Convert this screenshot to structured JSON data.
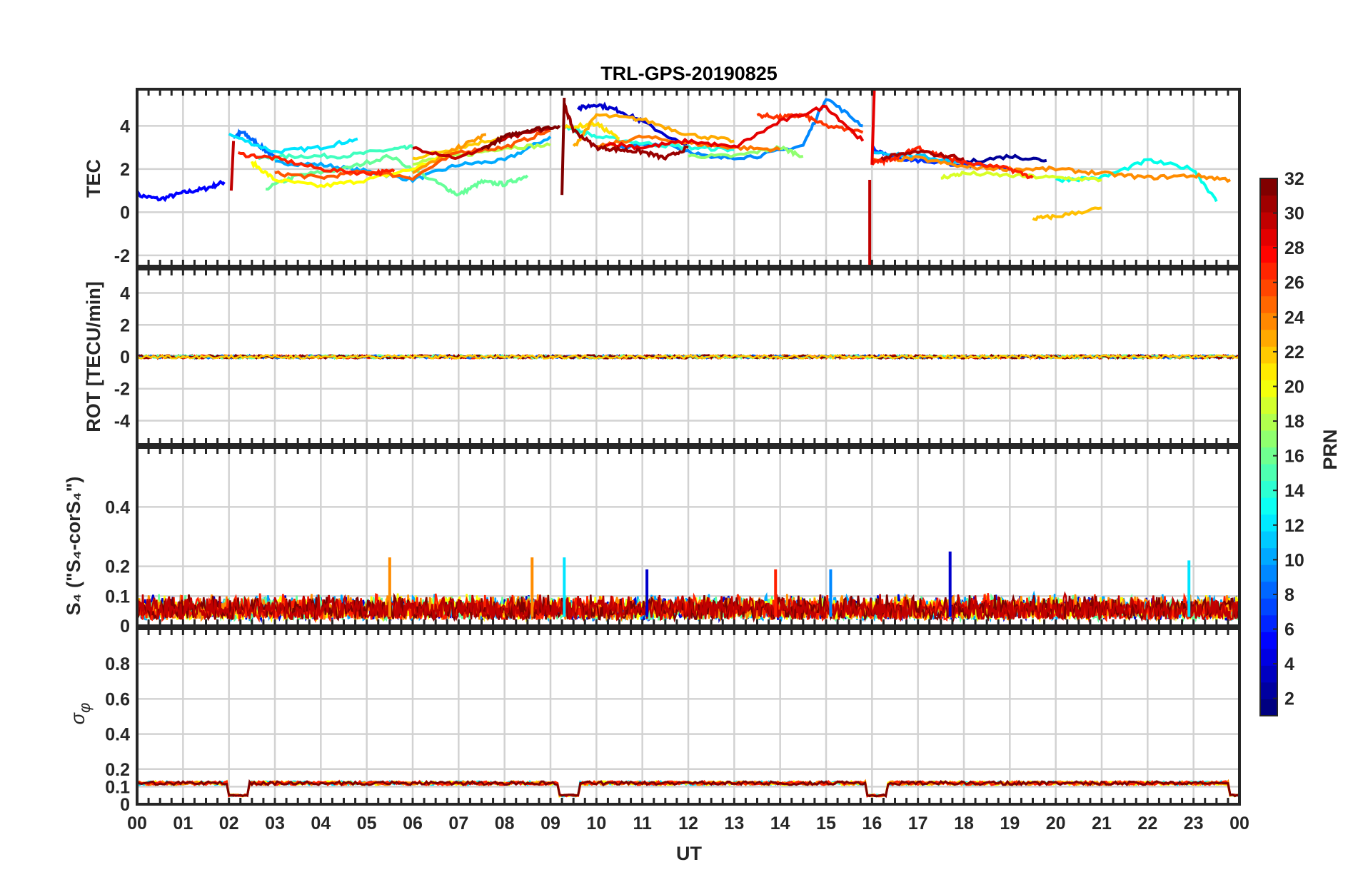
{
  "chart_data": [
    {
      "type": "line",
      "title": "TRL-GPS-20190825",
      "ylabel": "TEC",
      "ylim": [
        -2.5,
        5.7
      ],
      "yticks": [
        -2,
        0,
        2,
        4
      ],
      "xlim": [
        0,
        24
      ],
      "series": [
        {
          "prn": 4,
          "color": "#0000ff",
          "x": [
            0,
            0.5,
            1,
            1.5,
            1.9
          ],
          "y": [
            0.8,
            0.6,
            0.9,
            1.1,
            1.4
          ]
        },
        {
          "prn": 8,
          "color": "#0066ff",
          "x": [
            2.1,
            2.3,
            2.6,
            3.0
          ],
          "y": [
            3.5,
            3.7,
            3.2,
            2.5
          ]
        },
        {
          "prn": 10,
          "color": "#00aaff",
          "x": [
            3.0,
            4.0,
            5.0,
            6.0,
            7.0,
            8.0,
            9.0
          ],
          "y": [
            2.3,
            2.2,
            1.9,
            1.5,
            2.2,
            2.4,
            3.5
          ]
        },
        {
          "prn": 12,
          "color": "#00e5ff",
          "x": [
            2.0,
            3.0,
            4.0,
            4.8
          ],
          "y": [
            3.6,
            2.8,
            3.0,
            3.4
          ]
        },
        {
          "prn": 15,
          "color": "#40ffbf",
          "x": [
            2.6,
            3.5,
            4.5,
            5.5,
            6.0
          ],
          "y": [
            2.5,
            2.6,
            2.6,
            2.9,
            3.0
          ]
        },
        {
          "prn": 16,
          "color": "#66ff99",
          "x": [
            2.8,
            3.5,
            4.5,
            5.5,
            6.5,
            7.0,
            7.5,
            8.0,
            8.5
          ],
          "y": [
            1.1,
            1.7,
            2.0,
            2.6,
            1.4,
            0.8,
            1.4,
            1.3,
            1.7
          ]
        },
        {
          "prn": 18,
          "color": "#b3ff4d",
          "x": [
            6.0,
            7.0,
            8.0,
            9.0
          ],
          "y": [
            2.3,
            2.6,
            3.0,
            3.1
          ]
        },
        {
          "prn": 20,
          "color": "#ffff00",
          "x": [
            2.5,
            3.0,
            4.0,
            5.0,
            6.0,
            7.0
          ],
          "y": [
            2.3,
            1.5,
            1.2,
            1.5,
            2.0,
            2.9
          ]
        },
        {
          "prn": 22,
          "color": "#ffcc00",
          "x": [
            6.0,
            7.0,
            8.0
          ],
          "y": [
            2.5,
            3.0,
            3.5
          ]
        },
        {
          "prn": 24,
          "color": "#ff9900",
          "x": [
            6.0,
            7.0,
            7.6
          ],
          "y": [
            1.8,
            3.0,
            3.6
          ]
        },
        {
          "prn": 26,
          "color": "#ff5500",
          "x": [
            3.0,
            4.0,
            5.0,
            6.0,
            7.0,
            8.0,
            9.0
          ],
          "y": [
            1.8,
            1.6,
            1.9,
            1.6,
            2.8,
            3.0,
            3.8
          ]
        },
        {
          "prn": 28,
          "color": "#ff2000",
          "x": [
            2.2,
            3.0,
            4.0,
            5.0,
            5.6
          ],
          "y": [
            2.7,
            2.5,
            2.0,
            1.8,
            1.9
          ]
        },
        {
          "prn": 30,
          "color": "#c00000",
          "x": [
            6.0,
            7.0,
            8.0,
            9.0
          ],
          "y": [
            3.0,
            2.5,
            3.4,
            3.9
          ]
        },
        {
          "prn": 32,
          "color": "#800000",
          "x": [
            7.5,
            8.0,
            8.5,
            9.2
          ],
          "y": [
            2.9,
            3.5,
            3.8,
            4.0
          ]
        },
        {
          "prn": 3,
          "color": "#0000cc",
          "x": [
            9.6,
            10.0,
            10.5,
            11.0,
            12.0
          ],
          "y": [
            4.8,
            5.0,
            4.7,
            4.2,
            3.0
          ]
        },
        {
          "prn": 9,
          "color": "#0088ff",
          "x": [
            10.5,
            11.5,
            12.5,
            13.5,
            14.5,
            15.0,
            15.8
          ],
          "y": [
            3.0,
            3.2,
            2.5,
            2.6,
            3.1,
            5.3,
            4.0
          ]
        },
        {
          "prn": 14,
          "color": "#20ffdf",
          "x": [
            9.3,
            10.0,
            11.0,
            12.0,
            13.0
          ],
          "y": [
            4.0,
            3.5,
            3.2,
            3.0,
            2.9
          ]
        },
        {
          "prn": 17,
          "color": "#90ff70",
          "x": [
            12.0,
            13.0,
            14.0,
            14.5
          ],
          "y": [
            2.6,
            2.6,
            3.0,
            2.6
          ]
        },
        {
          "prn": 21,
          "color": "#ffe000",
          "x": [
            9.3,
            10.0,
            10.5
          ],
          "y": [
            3.9,
            4.1,
            3.4
          ]
        },
        {
          "prn": 23,
          "color": "#ffaa00",
          "x": [
            9.5,
            10.0,
            11.0,
            12.0,
            13.0
          ],
          "y": [
            3.0,
            4.5,
            4.3,
            3.6,
            3.3
          ]
        },
        {
          "prn": 25,
          "color": "#ff7700",
          "x": [
            10.0,
            11.0,
            12.0,
            13.0,
            14.0
          ],
          "y": [
            3.0,
            3.5,
            3.2,
            3.0,
            2.9
          ]
        },
        {
          "prn": 27,
          "color": "#ff3300",
          "x": [
            13.5,
            14.0,
            14.5,
            15.0,
            15.8
          ],
          "y": [
            4.5,
            4.4,
            4.5,
            4.0,
            3.7
          ]
        },
        {
          "prn": 29,
          "color": "#e60000",
          "x": [
            10.2,
            11.0,
            12.0,
            13.0,
            14.0,
            15.0,
            15.8
          ],
          "y": [
            3.2,
            3.0,
            3.3,
            3.0,
            4.2,
            4.9,
            3.3
          ]
        },
        {
          "prn": 31,
          "color": "#990000",
          "x": [
            9.3,
            9.5,
            10.0,
            10.5,
            11.0,
            11.5,
            12.0
          ],
          "y": [
            5.0,
            3.8,
            3.0,
            2.9,
            2.8,
            2.5,
            3.0
          ]
        },
        {
          "prn": 2,
          "color": "#000099",
          "x": [
            17.0,
            18.0,
            19.0,
            19.8
          ],
          "y": [
            2.5,
            2.3,
            2.6,
            2.4
          ]
        },
        {
          "prn": 6,
          "color": "#0033ff",
          "x": [
            16.0,
            16.5,
            17.0,
            18.0,
            19.0
          ],
          "y": [
            3.0,
            2.5,
            2.4,
            2.2,
            2.0
          ]
        },
        {
          "prn": 11,
          "color": "#00c8ff",
          "x": [
            16.0,
            17.0,
            18.0
          ],
          "y": [
            2.8,
            2.6,
            2.3
          ]
        },
        {
          "prn": 13,
          "color": "#00ffea",
          "x": [
            20.0,
            21.0,
            22.0,
            23.0,
            23.5
          ],
          "y": [
            1.5,
            1.6,
            2.4,
            2.0,
            0.5
          ]
        },
        {
          "prn": 19,
          "color": "#d9ff26",
          "x": [
            17.5,
            18.0,
            19.0,
            20.0,
            21.0
          ],
          "y": [
            1.6,
            1.8,
            1.7,
            1.6,
            1.5
          ]
        },
        {
          "prn": 22,
          "color": "#ffbf00",
          "x": [
            19.5,
            20.0,
            21.0
          ],
          "y": [
            -0.3,
            -0.2,
            0.2
          ]
        },
        {
          "prn": 24,
          "color": "#ff8c00",
          "x": [
            16.0,
            17.0,
            18.0,
            19.0,
            20.0,
            21.0,
            22.0,
            23.0,
            23.8
          ],
          "y": [
            2.4,
            2.5,
            2.1,
            2.0,
            2.0,
            1.8,
            1.6,
            1.7,
            1.5
          ]
        },
        {
          "prn": 28,
          "color": "#ff2000",
          "x": [
            16.0,
            16.3,
            16.6,
            17.0,
            17.5,
            18.0,
            19.0,
            19.5
          ],
          "y": [
            2.3,
            2.4,
            2.6,
            3.0,
            2.6,
            2.3,
            2.0,
            1.6
          ]
        },
        {
          "prn": 31,
          "color": "#aa0000",
          "x": [
            16.2,
            17.0,
            18.0
          ],
          "y": [
            2.5,
            2.8,
            2.5
          ]
        }
      ]
    },
    {
      "type": "line",
      "ylabel": "ROT [TECU/min]",
      "ylim": [
        -5.5,
        5.5
      ],
      "yticks": [
        -4,
        -2,
        0,
        2,
        4
      ],
      "xlim": [
        0,
        24
      ],
      "values_note_level": 0
    },
    {
      "type": "line",
      "ylabel": "S₄ (\"S₄-corS₄\")",
      "ylim": [
        0,
        0.6
      ],
      "yticks": [
        0,
        0.1,
        0.2,
        0.4
      ],
      "xlim": [
        0,
        24
      ],
      "spikes": [
        {
          "x": 5.5,
          "y": 0.23,
          "color": "#ff8c00"
        },
        {
          "x": 8.6,
          "y": 0.23,
          "color": "#ff8c00"
        },
        {
          "x": 9.3,
          "y": 0.23,
          "color": "#00e5ff"
        },
        {
          "x": 11.1,
          "y": 0.19,
          "color": "#0000cc"
        },
        {
          "x": 13.9,
          "y": 0.19,
          "color": "#ff2000"
        },
        {
          "x": 15.1,
          "y": 0.19,
          "color": "#0088ff"
        },
        {
          "x": 17.7,
          "y": 0.25,
          "color": "#0000cc"
        },
        {
          "x": 22.9,
          "y": 0.22,
          "color": "#00e5ff"
        }
      ]
    },
    {
      "type": "line",
      "ylabel": "σ φ",
      "ylim": [
        0,
        1.0
      ],
      "yticks": [
        0,
        0.1,
        0.2,
        0.4,
        0.6,
        0.8
      ],
      "xlim": [
        0,
        24
      ],
      "level": 0.12,
      "dips": [
        [
          2.0,
          2.4,
          0.05
        ],
        [
          9.2,
          9.6,
          0.05
        ],
        [
          15.9,
          16.3,
          0.05
        ],
        [
          23.8,
          24,
          0.05
        ]
      ]
    }
  ],
  "xaxis": {
    "label": "UT",
    "ticks": [
      "00",
      "01",
      "02",
      "03",
      "04",
      "05",
      "06",
      "07",
      "08",
      "09",
      "10",
      "11",
      "12",
      "13",
      "14",
      "15",
      "16",
      "17",
      "18",
      "19",
      "20",
      "21",
      "22",
      "23",
      "00"
    ]
  },
  "colorbar": {
    "label": "PRN",
    "range": [
      1,
      32
    ],
    "ticks": [
      "2",
      "4",
      "6",
      "8",
      "10",
      "12",
      "14",
      "16",
      "18",
      "20",
      "22",
      "24",
      "26",
      "28",
      "30",
      "32"
    ],
    "colormap": "jet"
  }
}
